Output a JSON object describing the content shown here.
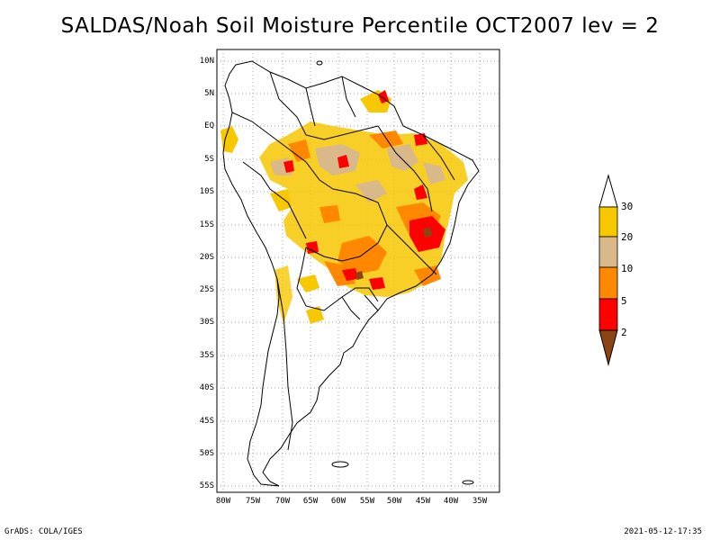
{
  "title": "SALDAS/Noah Soil Moisture Percentile OCT2007 lev = 2",
  "map": {
    "lat_labels": [
      "10N",
      "5N",
      "EQ",
      "5S",
      "10S",
      "15S",
      "20S",
      "25S",
      "30S",
      "35S",
      "40S",
      "45S",
      "50S",
      "55S"
    ],
    "lon_labels": [
      "80W",
      "75W",
      "70W",
      "65W",
      "60W",
      "55W",
      "50W",
      "45W",
      "40W",
      "35W"
    ],
    "lat_range": [
      -56,
      12
    ],
    "lon_range": [
      -81,
      -34
    ],
    "grid": true
  },
  "colorbar": {
    "labels": [
      "30",
      "20",
      "10",
      "5",
      "2"
    ],
    "colors": [
      "#ffffff",
      "#f7c700",
      "#d9b88a",
      "#ff8800",
      "#ff0000",
      "#8b4513"
    ]
  },
  "footer": {
    "left": "GrADS: COLA/IGES",
    "right": "2021-05-12-17:35"
  }
}
